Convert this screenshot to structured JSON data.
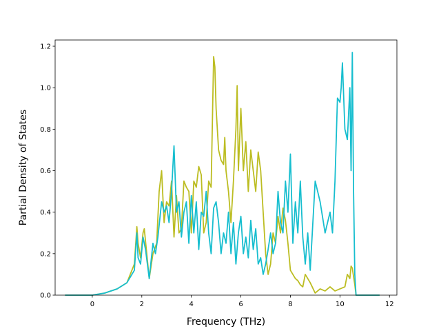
{
  "chart_data": {
    "type": "line",
    "xlabel": "Frequency (THz)",
    "ylabel": "Partial Density of States",
    "xlim": [
      -1.5,
      12.3
    ],
    "ylim": [
      0,
      1.23
    ],
    "xticks": [
      0,
      2,
      4,
      6,
      8,
      10,
      12
    ],
    "xtick_labels": [
      "0",
      "2",
      "4",
      "6",
      "8",
      "10",
      "12"
    ],
    "yticks": [
      0.0,
      0.2,
      0.4,
      0.6,
      0.8,
      1.0,
      1.2
    ],
    "ytick_labels": [
      "0.0",
      "0.2",
      "0.4",
      "0.6",
      "0.8",
      "1.0",
      "1.2"
    ],
    "grid": false,
    "series": [
      {
        "color": "#bcbd22",
        "x": [
          -1.1,
          0.0,
          0.5,
          1.0,
          1.4,
          1.7,
          1.8,
          1.85,
          1.95,
          2.05,
          2.1,
          2.2,
          2.3,
          2.45,
          2.6,
          2.7,
          2.8,
          2.9,
          3.0,
          3.1,
          3.2,
          3.3,
          3.4,
          3.5,
          3.6,
          3.7,
          3.8,
          3.9,
          4.0,
          4.1,
          4.2,
          4.3,
          4.4,
          4.5,
          4.6,
          4.7,
          4.8,
          4.9,
          4.95,
          5.0,
          5.1,
          5.2,
          5.3,
          5.35,
          5.4,
          5.5,
          5.6,
          5.7,
          5.8,
          5.85,
          5.9,
          6.0,
          6.1,
          6.2,
          6.3,
          6.4,
          6.5,
          6.6,
          6.7,
          6.8,
          6.9,
          7.0,
          7.1,
          7.2,
          7.3,
          7.4,
          7.5,
          7.6,
          7.7,
          7.8,
          7.9,
          8.0,
          8.1,
          8.2,
          8.3,
          8.4,
          8.5,
          8.6,
          8.8,
          9.0,
          9.2,
          9.4,
          9.6,
          9.8,
          10.0,
          10.2,
          10.3,
          10.4,
          10.45,
          10.5,
          10.6,
          10.65,
          11.6
        ],
        "y": [
          0.0,
          0.0,
          0.01,
          0.03,
          0.06,
          0.15,
          0.33,
          0.25,
          0.18,
          0.3,
          0.32,
          0.2,
          0.08,
          0.2,
          0.25,
          0.5,
          0.6,
          0.35,
          0.45,
          0.43,
          0.55,
          0.28,
          0.48,
          0.3,
          0.32,
          0.55,
          0.52,
          0.5,
          0.3,
          0.55,
          0.52,
          0.62,
          0.58,
          0.3,
          0.35,
          0.55,
          0.52,
          1.15,
          1.1,
          0.9,
          0.7,
          0.65,
          0.63,
          0.76,
          0.6,
          0.5,
          0.35,
          0.55,
          0.8,
          1.01,
          0.6,
          0.9,
          0.6,
          0.74,
          0.5,
          0.7,
          0.6,
          0.5,
          0.69,
          0.6,
          0.4,
          0.2,
          0.1,
          0.15,
          0.3,
          0.25,
          0.38,
          0.3,
          0.42,
          0.36,
          0.25,
          0.12,
          0.1,
          0.08,
          0.07,
          0.05,
          0.04,
          0.1,
          0.06,
          0.01,
          0.03,
          0.02,
          0.04,
          0.02,
          0.03,
          0.04,
          0.1,
          0.08,
          0.14,
          0.13,
          0.05,
          0.0,
          0.0
        ]
      },
      {
        "color": "#17becf",
        "x": [
          -1.1,
          0.0,
          0.5,
          1.0,
          1.4,
          1.7,
          1.8,
          1.85,
          1.95,
          2.05,
          2.15,
          2.3,
          2.45,
          2.55,
          2.65,
          2.8,
          2.9,
          3.0,
          3.1,
          3.2,
          3.3,
          3.4,
          3.5,
          3.6,
          3.7,
          3.8,
          3.9,
          4.0,
          4.1,
          4.2,
          4.3,
          4.4,
          4.5,
          4.6,
          4.7,
          4.8,
          4.9,
          5.0,
          5.1,
          5.2,
          5.3,
          5.4,
          5.5,
          5.6,
          5.7,
          5.8,
          5.9,
          6.0,
          6.1,
          6.2,
          6.3,
          6.4,
          6.5,
          6.6,
          6.7,
          6.8,
          6.9,
          7.0,
          7.1,
          7.2,
          7.3,
          7.4,
          7.5,
          7.6,
          7.7,
          7.8,
          7.9,
          8.0,
          8.1,
          8.2,
          8.3,
          8.4,
          8.5,
          8.6,
          8.7,
          8.8,
          9.0,
          9.2,
          9.4,
          9.6,
          9.7,
          9.8,
          9.9,
          10.0,
          10.05,
          10.1,
          10.2,
          10.3,
          10.4,
          10.45,
          10.5,
          10.55,
          10.6,
          10.65,
          11.6
        ],
        "y": [
          0.0,
          0.0,
          0.01,
          0.03,
          0.06,
          0.12,
          0.3,
          0.18,
          0.15,
          0.28,
          0.22,
          0.08,
          0.25,
          0.2,
          0.28,
          0.45,
          0.4,
          0.43,
          0.35,
          0.5,
          0.72,
          0.4,
          0.45,
          0.28,
          0.4,
          0.45,
          0.25,
          0.48,
          0.3,
          0.45,
          0.22,
          0.4,
          0.38,
          0.5,
          0.3,
          0.2,
          0.42,
          0.45,
          0.35,
          0.2,
          0.3,
          0.25,
          0.4,
          0.2,
          0.35,
          0.15,
          0.3,
          0.38,
          0.2,
          0.28,
          0.18,
          0.36,
          0.22,
          0.32,
          0.15,
          0.18,
          0.1,
          0.15,
          0.22,
          0.3,
          0.2,
          0.25,
          0.5,
          0.35,
          0.3,
          0.55,
          0.4,
          0.68,
          0.25,
          0.45,
          0.3,
          0.55,
          0.28,
          0.15,
          0.3,
          0.12,
          0.55,
          0.45,
          0.3,
          0.4,
          0.3,
          0.55,
          0.95,
          0.93,
          1.0,
          1.12,
          0.8,
          0.75,
          1.0,
          0.6,
          1.17,
          0.5,
          0.1,
          0.0,
          0.0
        ]
      }
    ]
  }
}
